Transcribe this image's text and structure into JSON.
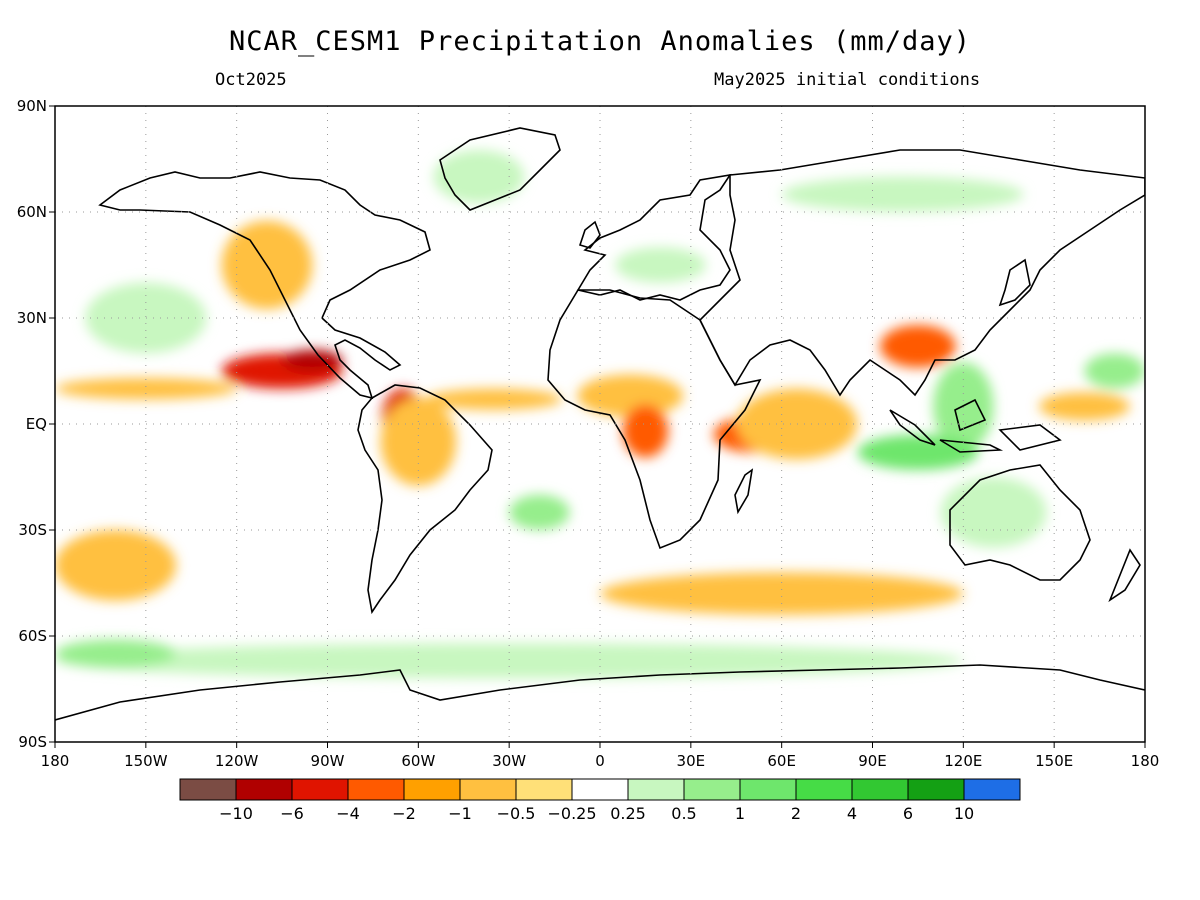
{
  "header": {
    "title": "NCAR_CESM1 Precipitation Anomalies (mm/day)",
    "valid_month": "Oct2025",
    "init_conditions": "May2025 initial conditions"
  },
  "map": {
    "projection": "equirectangular",
    "lat_labels": [
      "90N",
      "60N",
      "30N",
      "EQ",
      "30S",
      "60S",
      "90S"
    ],
    "lat_values": [
      90,
      60,
      30,
      0,
      -30,
      -60,
      -90
    ],
    "lon_labels": [
      "180",
      "150W",
      "120W",
      "90W",
      "60W",
      "30W",
      "0",
      "30E",
      "60E",
      "90E",
      "120E",
      "150E",
      "180"
    ],
    "lon_values": [
      -180,
      -150,
      -120,
      -90,
      -60,
      -30,
      0,
      30,
      60,
      90,
      120,
      150,
      180
    ],
    "grid": "dotted",
    "frame_color": "#000000",
    "coastline_color": "#000000"
  },
  "colorbar": {
    "colors": [
      "#7b4c44",
      "#b00000",
      "#e01400",
      "#ff5a00",
      "#ffa000",
      "#ffc040",
      "#ffe078",
      "#ffffff",
      "#c8f7c0",
      "#96ee8c",
      "#6ee66c",
      "#46dc46",
      "#32c832",
      "#14a014",
      "#1e6ee6"
    ],
    "labels": [
      "−10",
      "−6",
      "−4",
      "−2",
      "−1",
      "−0.5",
      "−0.25",
      "0.25",
      "0.5",
      "1",
      "2",
      "4",
      "6",
      "10"
    ]
  },
  "anomaly_regions": [
    {
      "lon": -105,
      "lat": 15,
      "w": 40,
      "h": 10,
      "level": "-4"
    },
    {
      "lon": -95,
      "lat": 18,
      "w": 20,
      "h": 6,
      "level": "-6"
    },
    {
      "lon": -150,
      "lat": 10,
      "w": 60,
      "h": 6,
      "level": "-1"
    },
    {
      "lon": -65,
      "lat": 2,
      "w": 14,
      "h": 16,
      "level": "-4"
    },
    {
      "lon": -60,
      "lat": -5,
      "w": 25,
      "h": 25,
      "level": "-1"
    },
    {
      "lon": -35,
      "lat": 7,
      "w": 45,
      "h": 6,
      "level": "-1"
    },
    {
      "lon": 10,
      "lat": 8,
      "w": 35,
      "h": 12,
      "level": "-1"
    },
    {
      "lon": 15,
      "lat": -2,
      "w": 15,
      "h": 15,
      "level": "-2"
    },
    {
      "lon": 50,
      "lat": -3,
      "w": 25,
      "h": 10,
      "level": "-2"
    },
    {
      "lon": 65,
      "lat": 0,
      "w": 40,
      "h": 20,
      "level": "-1"
    },
    {
      "lon": 105,
      "lat": 22,
      "w": 25,
      "h": 12,
      "level": "-2"
    },
    {
      "lon": -110,
      "lat": 45,
      "w": 30,
      "h": 25,
      "level": "-1"
    },
    {
      "lon": -160,
      "lat": -40,
      "w": 40,
      "h": 20,
      "level": "-1"
    },
    {
      "lon": 60,
      "lat": -48,
      "w": 120,
      "h": 12,
      "level": "-1"
    },
    {
      "lon": 160,
      "lat": 5,
      "w": 30,
      "h": 8,
      "level": "-1"
    },
    {
      "lon": 120,
      "lat": 5,
      "w": 20,
      "h": 25,
      "level": "1"
    },
    {
      "lon": 105,
      "lat": -8,
      "w": 40,
      "h": 10,
      "level": "2"
    },
    {
      "lon": 130,
      "lat": -25,
      "w": 35,
      "h": 20,
      "level": "0.5"
    },
    {
      "lon": -30,
      "lat": -67,
      "w": 300,
      "h": 10,
      "level": "0.5"
    },
    {
      "lon": -160,
      "lat": -65,
      "w": 40,
      "h": 8,
      "level": "1"
    },
    {
      "lon": -40,
      "lat": 70,
      "w": 30,
      "h": 15,
      "level": "0.5"
    },
    {
      "lon": -150,
      "lat": 30,
      "w": 40,
      "h": 20,
      "level": "0.5"
    },
    {
      "lon": 170,
      "lat": 15,
      "w": 20,
      "h": 10,
      "level": "1"
    },
    {
      "lon": -20,
      "lat": -25,
      "w": 20,
      "h": 10,
      "level": "1"
    },
    {
      "lon": 20,
      "lat": 45,
      "w": 30,
      "h": 10,
      "level": "0.5"
    },
    {
      "lon": 100,
      "lat": 65,
      "w": 80,
      "h": 10,
      "level": "0.5"
    }
  ]
}
